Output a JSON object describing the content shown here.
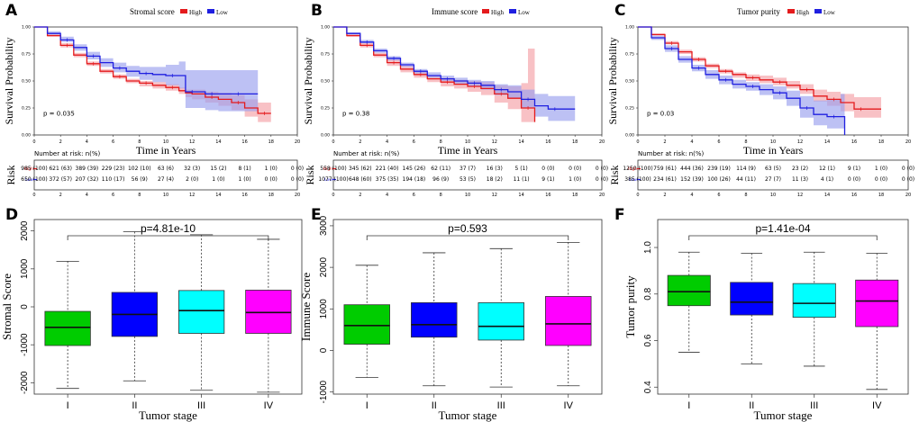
{
  "colors": {
    "high": "#e41a1c",
    "low": "#1f1fe0",
    "high_band": "#f4a0a6",
    "low_band": "#9aa0ee",
    "box_I": "#00cc00",
    "box_II": "#0000ff",
    "box_III": "#00ffff",
    "box_IV": "#ff00ff"
  },
  "chart_data": [
    {
      "type": "line",
      "panel": "A",
      "title": "Stromal score",
      "legend": [
        "High",
        "Low"
      ],
      "xlabel": "Time in Years",
      "ylabel": "Survival Probability",
      "xlim": [
        0,
        20
      ],
      "ylim": [
        0,
        1.0
      ],
      "xticks": [
        0,
        2,
        4,
        6,
        8,
        10,
        12,
        14,
        16,
        18,
        20
      ],
      "yticks": [
        "0.00",
        "0.25",
        "0.50",
        "0.75",
        "1.00"
      ],
      "pvalue": "p = 0.035",
      "series": [
        {
          "name": "High",
          "x": [
            0,
            1,
            2,
            3,
            4,
            5,
            6,
            7,
            8,
            9,
            10,
            11,
            11.5,
            12,
            13,
            14,
            15,
            16,
            17,
            18
          ],
          "y": [
            1.0,
            0.92,
            0.83,
            0.74,
            0.66,
            0.59,
            0.54,
            0.5,
            0.48,
            0.46,
            0.44,
            0.41,
            0.39,
            0.38,
            0.35,
            0.33,
            0.3,
            0.25,
            0.2,
            0.2
          ],
          "lo": [
            1.0,
            0.91,
            0.81,
            0.72,
            0.64,
            0.57,
            0.52,
            0.48,
            0.45,
            0.43,
            0.41,
            0.38,
            0.35,
            0.33,
            0.3,
            0.27,
            0.23,
            0.17,
            0.12,
            0.12
          ],
          "hi": [
            1.0,
            0.94,
            0.85,
            0.76,
            0.68,
            0.61,
            0.56,
            0.52,
            0.5,
            0.49,
            0.47,
            0.44,
            0.42,
            0.42,
            0.4,
            0.39,
            0.37,
            0.33,
            0.3,
            0.3
          ]
        },
        {
          "name": "Low",
          "x": [
            0,
            1,
            2,
            3,
            4,
            5,
            6,
            7,
            8,
            9,
            10,
            11,
            11.5,
            12,
            13,
            14,
            15,
            16,
            17
          ],
          "y": [
            1.0,
            0.94,
            0.88,
            0.81,
            0.73,
            0.67,
            0.62,
            0.59,
            0.57,
            0.56,
            0.55,
            0.55,
            0.4,
            0.4,
            0.38,
            0.38,
            0.38,
            0.38,
            0.38
          ],
          "lo": [
            1.0,
            0.93,
            0.86,
            0.78,
            0.7,
            0.63,
            0.58,
            0.54,
            0.51,
            0.49,
            0.46,
            0.43,
            0.25,
            0.25,
            0.23,
            0.22,
            0.22,
            0.22,
            0.22
          ],
          "hi": [
            1.0,
            0.96,
            0.91,
            0.84,
            0.77,
            0.71,
            0.67,
            0.64,
            0.63,
            0.63,
            0.65,
            0.68,
            0.6,
            0.6,
            0.6,
            0.6,
            0.6,
            0.6,
            0.6
          ]
        }
      ],
      "risk": {
        "title": "Number at risk: n(%)",
        "label": "Risk",
        "rows": [
          {
            "group": "High",
            "values": [
              "985 (100)",
              "621 (63)",
              "389 (39)",
              "229 (23)",
              "102 (10)",
              "63 (6)",
              "32 (3)",
              "15 (2)",
              "8 (1)",
              "1 (0)",
              "0 (0)"
            ]
          },
          {
            "group": "Low",
            "values": [
              "650 (100)",
              "372 (57)",
              "207 (32)",
              "110 (17)",
              "56 (9)",
              "27 (4)",
              "2 (0)",
              "1 (0)",
              "1 (0)",
              "0 (0)",
              "0 (0)"
            ]
          }
        ]
      }
    },
    {
      "type": "line",
      "panel": "B",
      "title": "Immune score",
      "legend": [
        "High",
        "Low"
      ],
      "xlabel": "Time in Years",
      "ylabel": "Survival Probability",
      "xlim": [
        0,
        20
      ],
      "ylim": [
        0,
        1.0
      ],
      "xticks": [
        0,
        2,
        4,
        6,
        8,
        10,
        12,
        14,
        16,
        18,
        20
      ],
      "yticks": [
        "0.00",
        "0.25",
        "0.50",
        "0.75",
        "1.00"
      ],
      "pvalue": "p = 0.38",
      "series": [
        {
          "name": "High",
          "x": [
            0,
            1,
            2,
            3,
            4,
            5,
            6,
            7,
            8,
            9,
            10,
            11,
            12,
            13,
            14,
            14.5,
            15
          ],
          "y": [
            1.0,
            0.92,
            0.83,
            0.74,
            0.67,
            0.61,
            0.56,
            0.52,
            0.49,
            0.47,
            0.45,
            0.43,
            0.38,
            0.34,
            0.25,
            0.25,
            0.12
          ],
          "lo": [
            1.0,
            0.91,
            0.81,
            0.72,
            0.64,
            0.58,
            0.53,
            0.49,
            0.45,
            0.43,
            0.4,
            0.37,
            0.3,
            0.24,
            0.12,
            0.12,
            0.02
          ],
          "hi": [
            1.0,
            0.94,
            0.85,
            0.76,
            0.7,
            0.64,
            0.59,
            0.55,
            0.53,
            0.51,
            0.5,
            0.49,
            0.46,
            0.45,
            0.48,
            0.8,
            0.8
          ]
        },
        {
          "name": "Low",
          "x": [
            0,
            1,
            2,
            3,
            4,
            5,
            6,
            7,
            8,
            9,
            10,
            11,
            12,
            13,
            14,
            15,
            16,
            17,
            18
          ],
          "y": [
            1.0,
            0.94,
            0.86,
            0.78,
            0.71,
            0.65,
            0.59,
            0.55,
            0.52,
            0.5,
            0.48,
            0.46,
            0.42,
            0.4,
            0.33,
            0.27,
            0.24,
            0.24,
            0.24
          ],
          "lo": [
            1.0,
            0.93,
            0.85,
            0.76,
            0.69,
            0.63,
            0.57,
            0.53,
            0.5,
            0.47,
            0.45,
            0.42,
            0.37,
            0.34,
            0.25,
            0.17,
            0.13,
            0.13,
            0.13
          ],
          "hi": [
            1.0,
            0.95,
            0.88,
            0.8,
            0.73,
            0.67,
            0.61,
            0.58,
            0.55,
            0.53,
            0.51,
            0.5,
            0.47,
            0.46,
            0.42,
            0.38,
            0.36,
            0.36,
            0.36
          ]
        }
      ],
      "risk": {
        "title": "Number at risk: n(%)",
        "label": "Risk",
        "rows": [
          {
            "group": "High",
            "values": [
              "558 (100)",
              "345 (62)",
              "221 (40)",
              "145 (26)",
              "62 (11)",
              "37 (7)",
              "16 (3)",
              "5 (1)",
              "0 (0)",
              "0 (0)",
              "0 (0)"
            ]
          },
          {
            "group": "Low",
            "values": [
              "1077 (100)",
              "648 (60)",
              "375 (35)",
              "194 (18)",
              "96 (9)",
              "53 (5)",
              "18 (2)",
              "11 (1)",
              "9 (1)",
              "1 (0)",
              "0 (0)"
            ]
          }
        ]
      }
    },
    {
      "type": "line",
      "panel": "C",
      "title": "Tumor purity",
      "legend": [
        "High",
        "Low"
      ],
      "xlabel": "Time in Years",
      "ylabel": "Survival Probability",
      "xlim": [
        0,
        20
      ],
      "ylim": [
        0,
        1.0
      ],
      "xticks": [
        0,
        2,
        4,
        6,
        8,
        10,
        12,
        14,
        16,
        18,
        20
      ],
      "yticks": [
        "0.00",
        "0.25",
        "0.50",
        "0.75",
        "1.00"
      ],
      "pvalue": "p = 0.03",
      "series": [
        {
          "name": "High",
          "x": [
            0,
            1,
            2,
            3,
            4,
            5,
            6,
            7,
            8,
            9,
            10,
            11,
            12,
            13,
            14,
            15,
            16,
            17,
            18
          ],
          "y": [
            1.0,
            0.93,
            0.85,
            0.77,
            0.7,
            0.64,
            0.59,
            0.56,
            0.53,
            0.51,
            0.49,
            0.46,
            0.42,
            0.36,
            0.33,
            0.3,
            0.24,
            0.24,
            0.24
          ],
          "lo": [
            1.0,
            0.92,
            0.84,
            0.75,
            0.68,
            0.62,
            0.57,
            0.53,
            0.5,
            0.48,
            0.46,
            0.43,
            0.38,
            0.31,
            0.27,
            0.22,
            0.16,
            0.16,
            0.16
          ],
          "hi": [
            1.0,
            0.94,
            0.87,
            0.79,
            0.72,
            0.66,
            0.61,
            0.58,
            0.56,
            0.55,
            0.53,
            0.5,
            0.47,
            0.42,
            0.4,
            0.38,
            0.35,
            0.35,
            0.35
          ]
        },
        {
          "name": "Low",
          "x": [
            0,
            1,
            2,
            3,
            4,
            5,
            6,
            7,
            8,
            9,
            10,
            11,
            12,
            13,
            14,
            15,
            15.3
          ],
          "y": [
            1.0,
            0.9,
            0.8,
            0.7,
            0.62,
            0.56,
            0.51,
            0.47,
            0.45,
            0.42,
            0.39,
            0.34,
            0.25,
            0.19,
            0.17,
            0.17,
            0.0
          ],
          "lo": [
            1.0,
            0.88,
            0.77,
            0.67,
            0.59,
            0.52,
            0.47,
            0.43,
            0.41,
            0.37,
            0.33,
            0.27,
            0.16,
            0.09,
            0.06,
            0.06,
            0.0
          ],
          "hi": [
            1.0,
            0.92,
            0.83,
            0.73,
            0.65,
            0.6,
            0.55,
            0.51,
            0.49,
            0.47,
            0.45,
            0.41,
            0.36,
            0.32,
            0.33,
            0.38,
            0.38
          ]
        }
      ],
      "risk": {
        "title": "Number at risk: n(%)",
        "label": "Risk",
        "rows": [
          {
            "group": "High",
            "values": [
              "1250 (100)",
              "759 (61)",
              "444 (36)",
              "239 (19)",
              "114 (9)",
              "63 (5)",
              "23 (2)",
              "12 (1)",
              "9 (1)",
              "1 (0)",
              "0 (0)"
            ]
          },
          {
            "group": "Low",
            "values": [
              "385 (100)",
              "234 (61)",
              "152 (39)",
              "100 (26)",
              "44 (11)",
              "27 (7)",
              "11 (3)",
              "4 (1)",
              "0 (0)",
              "0 (0)",
              "0 (0)"
            ]
          }
        ]
      }
    },
    {
      "type": "box",
      "panel": "D",
      "xlabel": "Tumor stage",
      "ylabel": "Stromal Score",
      "categories": [
        "I",
        "II",
        "III",
        "IV"
      ],
      "ylim": [
        -2300,
        2300
      ],
      "yticks": [
        -2000,
        -1000,
        0,
        1000,
        2000
      ],
      "pvalue": "p=4.81e-10",
      "boxes": [
        {
          "min": -2150,
          "q1": -1020,
          "median": -540,
          "q3": -120,
          "max": 1200
        },
        {
          "min": -1950,
          "q1": -780,
          "median": -200,
          "q3": 380,
          "max": 1980
        },
        {
          "min": -2200,
          "q1": -700,
          "median": -100,
          "q3": 430,
          "max": 1900
        },
        {
          "min": -2250,
          "q1": -700,
          "median": -150,
          "q3": 440,
          "max": 1780
        }
      ]
    },
    {
      "type": "box",
      "panel": "E",
      "xlabel": "Tumor stage",
      "ylabel": "Immune Score",
      "categories": [
        "I",
        "II",
        "III",
        "IV"
      ],
      "ylim": [
        -1050,
        3150
      ],
      "yticks": [
        -1000,
        0,
        1000,
        2000,
        3000
      ],
      "pvalue": "p=0.593",
      "boxes": [
        {
          "min": -650,
          "q1": 150,
          "median": 600,
          "q3": 1100,
          "max": 2050
        },
        {
          "min": -850,
          "q1": 320,
          "median": 620,
          "q3": 1150,
          "max": 2350
        },
        {
          "min": -880,
          "q1": 250,
          "median": 580,
          "q3": 1150,
          "max": 2450
        },
        {
          "min": -850,
          "q1": 120,
          "median": 640,
          "q3": 1300,
          "max": 2600
        }
      ]
    },
    {
      "type": "box",
      "panel": "F",
      "xlabel": "Tumor stage",
      "ylabel": "Tumor purity",
      "categories": [
        "I",
        "II",
        "III",
        "IV"
      ],
      "ylim": [
        0.37,
        1.12
      ],
      "yticks": [
        "0.4",
        "0.6",
        "0.8",
        "1.0"
      ],
      "pvalue": "p=1.41e-04",
      "boxes": [
        {
          "min": 0.55,
          "q1": 0.75,
          "median": 0.81,
          "q3": 0.88,
          "max": 0.98
        },
        {
          "min": 0.5,
          "q1": 0.71,
          "median": 0.765,
          "q3": 0.85,
          "max": 0.975
        },
        {
          "min": 0.49,
          "q1": 0.7,
          "median": 0.76,
          "q3": 0.845,
          "max": 0.98
        },
        {
          "min": 0.39,
          "q1": 0.66,
          "median": 0.77,
          "q3": 0.86,
          "max": 0.975
        }
      ]
    }
  ]
}
